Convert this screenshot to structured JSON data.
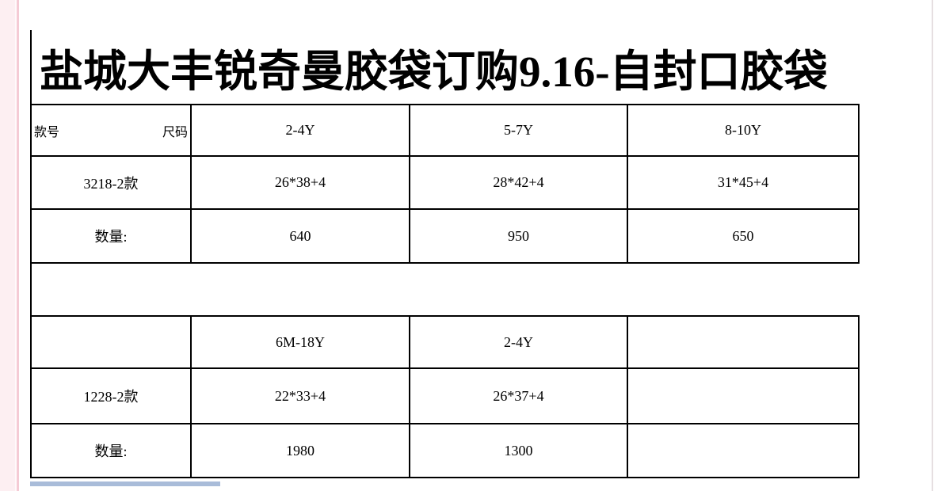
{
  "page": {
    "title": "盐城大丰锐奇曼胶袋订购9.16-自封口胶袋"
  },
  "colors": {
    "accent_bar": "#a9bcd9",
    "margin_pink": "#fdeff2",
    "margin_pink_line": "#f5cbd5",
    "page_edge": "#e6dfe1"
  },
  "table1": {
    "header": {
      "corner_left": "款号",
      "corner_right": "尺码",
      "sizes": [
        "2-4Y",
        "5-7Y",
        "8-10Y"
      ]
    },
    "spec_row": {
      "label": "3218-2款",
      "values": [
        "26*38+4",
        "28*42+4",
        "31*45+4"
      ]
    },
    "qty_row": {
      "label": "数量:",
      "values": [
        "640",
        "950",
        "650"
      ]
    }
  },
  "table2": {
    "header": {
      "corner": "",
      "sizes": [
        "6M-18Y",
        "2-4Y",
        ""
      ]
    },
    "spec_row": {
      "label": "1228-2款",
      "values": [
        "22*33+4",
        "26*37+4",
        ""
      ]
    },
    "qty_row": {
      "label": "数量:",
      "values": [
        "1980",
        "1300",
        ""
      ]
    }
  }
}
